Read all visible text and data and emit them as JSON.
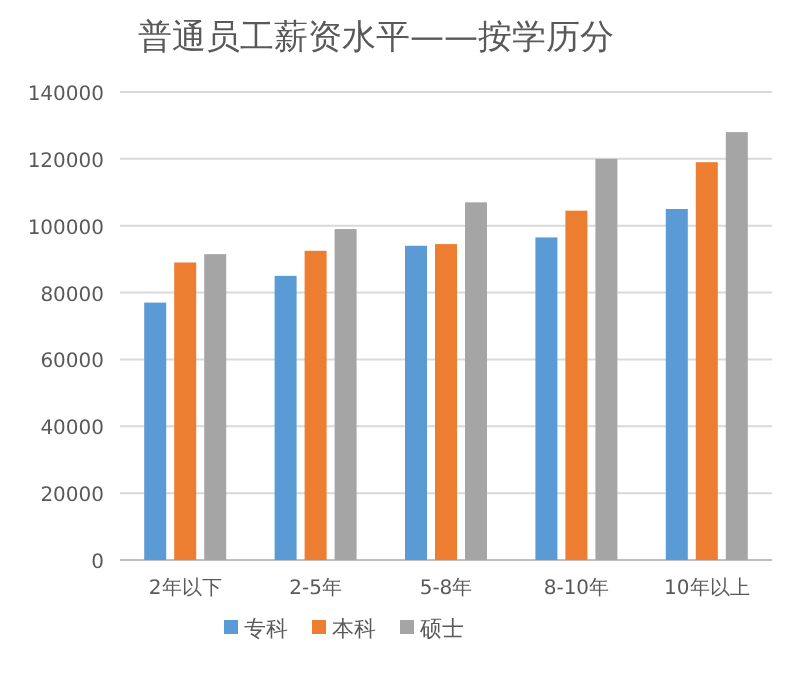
{
  "chart_data": {
    "type": "bar",
    "title": "普通员工薪资水平——按学历分",
    "categories": [
      "2年以下",
      "2-5年",
      "5-8年",
      "8-10年",
      "10年以上"
    ],
    "series": [
      {
        "name": "专科",
        "color": "#5b9bd5",
        "values": [
          77000,
          85000,
          94000,
          96500,
          105000
        ]
      },
      {
        "name": "本科",
        "color": "#ed7d31",
        "values": [
          89000,
          92500,
          94500,
          104500,
          119000
        ]
      },
      {
        "name": "硕士",
        "color": "#a5a5a5",
        "values": [
          91500,
          99000,
          107000,
          120000,
          128000
        ]
      }
    ],
    "ylim": [
      0,
      140000
    ],
    "yticks": [
      0,
      20000,
      40000,
      60000,
      80000,
      100000,
      120000,
      140000
    ],
    "grid": "y",
    "legend": "bottom"
  }
}
